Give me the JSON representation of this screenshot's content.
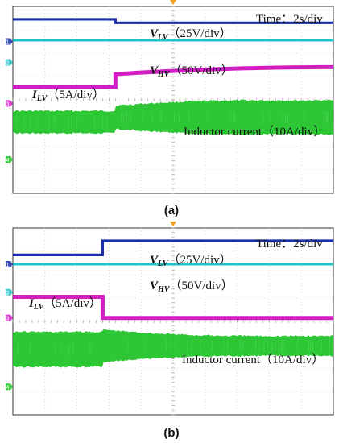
{
  "chart_data": [
    {
      "type": "line",
      "panel_label": "(a)",
      "time_scale_text": "Time：2s/div",
      "grid": true,
      "background": "#ffffff",
      "grid_color": "#bdbdbd",
      "trigger_marker_color": "#f0a020",
      "channel_markers": [
        "1",
        "2",
        "3",
        "4"
      ],
      "series": [
        {
          "name": "V_LV",
          "label": "V",
          "label_sub": "LV",
          "scale": "（25V/div）",
          "color": "#1a2fa8",
          "before": 0.55,
          "after": 0.7,
          "step_div": 3.2
        },
        {
          "name": "V_HV",
          "label": "V",
          "label_sub": "HV",
          "scale": "（50V/div）",
          "color": "#22c3c8",
          "before": 1.45,
          "after": 1.45,
          "step_div": 3.2
        },
        {
          "name": "I_LV",
          "label": "I",
          "label_sub": "LV",
          "scale": "（5A/div）",
          "color": "#d21fc4",
          "before": 3.45,
          "after": 2.9,
          "end": 2.6,
          "step_div": 3.2
        },
        {
          "name": "Inductor current",
          "label": "Inductor current",
          "label_sub": "",
          "scale": "（10A/div）",
          "color": "#16c01e",
          "center_before": 4.95,
          "band_before": 0.95,
          "center_after": 4.75,
          "band_after": 1.0,
          "band_end": 1.45,
          "step_div": 3.2
        }
      ]
    },
    {
      "type": "line",
      "panel_label": "(b)",
      "time_scale_text": "Time：2s/div",
      "grid": true,
      "background": "#ffffff",
      "grid_color": "#bdbdbd",
      "trigger_marker_color": "#f0a020",
      "channel_markers": [
        "1",
        "2",
        "3",
        "4"
      ],
      "series": [
        {
          "name": "V_LV",
          "label": "V",
          "label_sub": "LV",
          "scale": "（25V/div）",
          "color": "#1a2fa8",
          "before": 1.15,
          "after": 0.55,
          "step_div": 2.8
        },
        {
          "name": "V_HV",
          "label": "V",
          "label_sub": "HV",
          "scale": "（50V/div）",
          "color": "#22c3c8",
          "before": 1.55,
          "after": 1.55,
          "step_div": 2.8
        },
        {
          "name": "I_LV",
          "label": "I",
          "label_sub": "LV",
          "scale": "（5A/div）",
          "color": "#d21fc4",
          "before": 2.95,
          "after": 3.85,
          "end": 3.85,
          "step_div": 2.8
        },
        {
          "name": "Inductor current",
          "label": "Inductor current",
          "label_sub": "",
          "scale": "（10A/div）",
          "color": "#16c01e",
          "center_before": 5.2,
          "band_before": 1.5,
          "center_after": 5.05,
          "band_after": 1.4,
          "band_end": 0.85,
          "step_div": 2.8
        }
      ]
    }
  ]
}
